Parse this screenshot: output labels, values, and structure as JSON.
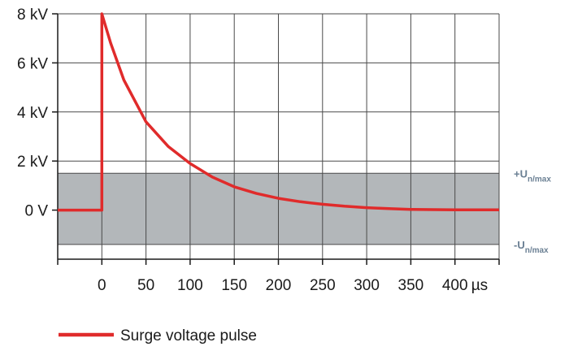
{
  "chart_data": {
    "type": "line",
    "title": "",
    "xlabel": "",
    "ylabel": "",
    "xlim": [
      -50,
      450
    ],
    "ylim": [
      -2,
      8
    ],
    "grid": true,
    "x_ticks": [
      0,
      50,
      100,
      150,
      200,
      250,
      300,
      350,
      400
    ],
    "x_tick_labels": [
      "0",
      "50",
      "100",
      "150",
      "200",
      "250",
      "300",
      "350",
      "400"
    ],
    "x_unit": "µs",
    "y_ticks": [
      0,
      2,
      4,
      6,
      8
    ],
    "y_tick_labels": [
      "0 V",
      "2 kV",
      "4 kV",
      "6 kV",
      "8 kV"
    ],
    "band": {
      "upper": 1.5,
      "lower": -1.4,
      "color": "#b3b7ba",
      "upper_label": {
        "main": "+U",
        "sub": "n/max"
      },
      "lower_label": {
        "main": "-U",
        "sub": "n/max"
      },
      "label_color": "#6a7f93"
    },
    "series": [
      {
        "name": "Surge voltage pulse",
        "color": "#e02b2b",
        "x": [
          -50,
          0,
          0,
          10,
          25,
          50,
          75,
          100,
          125,
          150,
          175,
          200,
          225,
          250,
          275,
          300,
          325,
          350,
          375,
          400,
          425,
          450
        ],
        "y": [
          0,
          0,
          8,
          6.8,
          5.3,
          3.6,
          2.6,
          1.9,
          1.35,
          0.95,
          0.68,
          0.48,
          0.34,
          0.24,
          0.16,
          0.1,
          0.06,
          0.03,
          0.02,
          0.01,
          0.01,
          0.01
        ]
      }
    ],
    "legend": {
      "position": "bottom-left"
    }
  }
}
